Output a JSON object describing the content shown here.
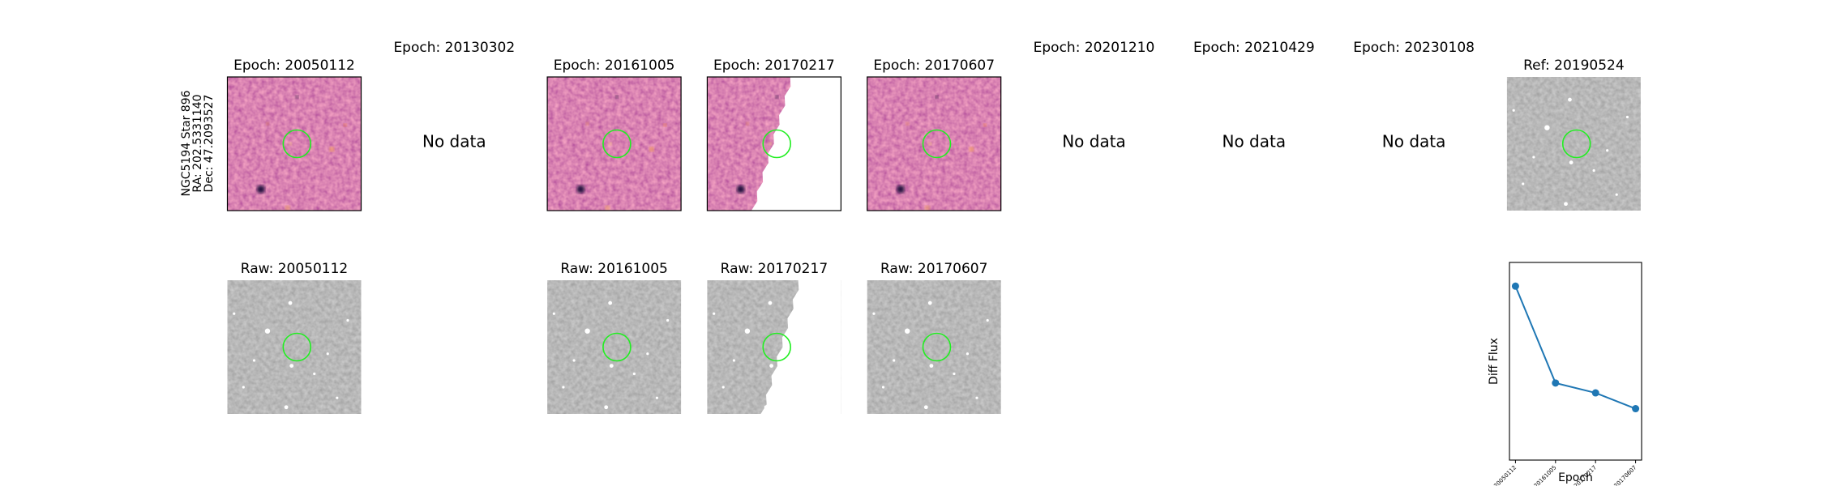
{
  "side_label": [
    "NGC5194 Star 896",
    "RA: 202.5331140",
    "Dec: 47.2093527"
  ],
  "diff_panels": [
    {
      "title": "Epoch: 20050112"
    },
    {
      "title": "Epoch: 20130302",
      "note": "No data"
    },
    {
      "title": "Epoch: 20161005"
    },
    {
      "title": "Epoch: 20170217"
    },
    {
      "title": "Epoch: 20170607"
    },
    {
      "title": "Epoch: 20201210",
      "note": "No data"
    },
    {
      "title": "Epoch: 20210429",
      "note": "No data"
    },
    {
      "title": "Epoch: 20230108",
      "note": "No data"
    }
  ],
  "ref_panel": {
    "title": "Ref: 20190524"
  },
  "raw_panels": [
    {
      "title": "Raw: 20050112"
    },
    {
      "title": "Raw: 20161005"
    },
    {
      "title": "Raw: 20170217"
    },
    {
      "title": "Raw: 20170607"
    }
  ],
  "chart_data": {
    "type": "line",
    "x_label": "Epoch",
    "y_label": "Diff Flux",
    "categories": [
      "20050112",
      "20161005",
      "20170217",
      "20170607"
    ],
    "series": [
      {
        "name": "Diff Flux",
        "color": "#1f77b4",
        "values": [
          88,
          39,
          34,
          26
        ]
      }
    ],
    "ylim": [
      0,
      100
    ]
  }
}
